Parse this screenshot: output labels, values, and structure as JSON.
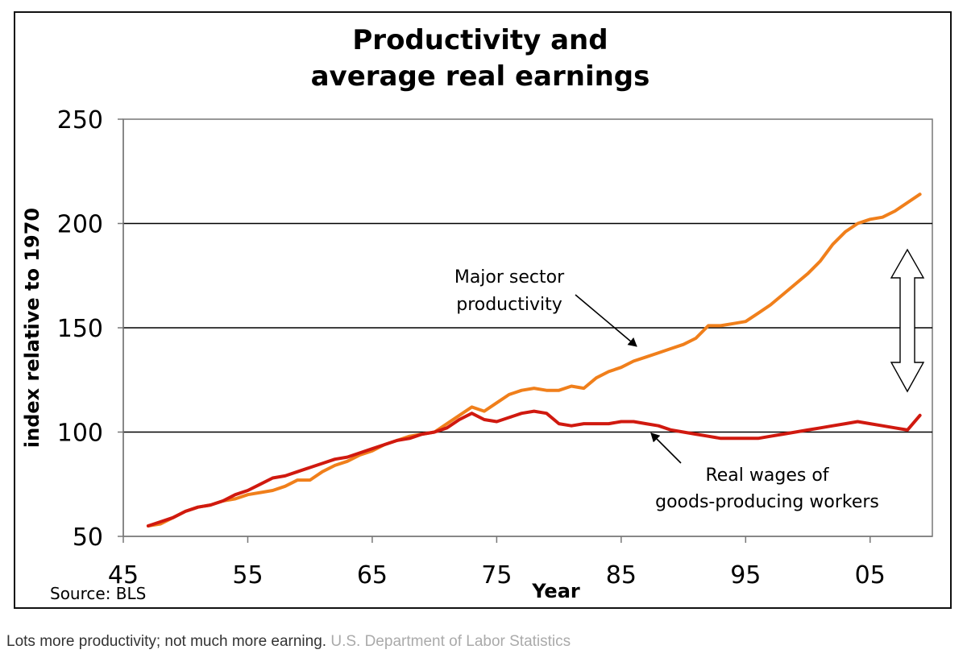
{
  "chart_data": {
    "type": "line",
    "title_lines": [
      "Productivity and",
      "average real earnings"
    ],
    "xlabel": "Year",
    "ylabel": "index relative to 1970",
    "xlim": [
      1945,
      2010
    ],
    "ylim": [
      50,
      250
    ],
    "x_ticks": [
      1945,
      1955,
      1965,
      1975,
      1985,
      1995,
      2005
    ],
    "x_tick_labels": [
      "45",
      "55",
      "65",
      "75",
      "85",
      "95",
      "05"
    ],
    "y_ticks": [
      50,
      100,
      150,
      200,
      250
    ],
    "y_tick_labels": [
      "50",
      "100",
      "150",
      "200",
      "250"
    ],
    "gridlines_y": [
      100,
      150,
      200
    ],
    "source": "Source: BLS",
    "series": [
      {
        "name": "Major sector productivity",
        "color": "#f07f1b",
        "x": [
          1947,
          1948,
          1949,
          1950,
          1951,
          1952,
          1953,
          1954,
          1955,
          1956,
          1957,
          1958,
          1959,
          1960,
          1961,
          1962,
          1963,
          1964,
          1965,
          1966,
          1967,
          1968,
          1969,
          1970,
          1971,
          1972,
          1973,
          1974,
          1975,
          1976,
          1977,
          1978,
          1979,
          1980,
          1981,
          1982,
          1983,
          1984,
          1985,
          1986,
          1987,
          1988,
          1989,
          1990,
          1991,
          1992,
          1993,
          1994,
          1995,
          1996,
          1997,
          1998,
          1999,
          2000,
          2001,
          2002,
          2003,
          2004,
          2005,
          2006,
          2007,
          2008,
          2009
        ],
        "values": [
          55,
          56,
          59,
          62,
          64,
          65,
          67,
          68,
          70,
          71,
          72,
          74,
          77,
          77,
          81,
          84,
          86,
          89,
          91,
          94,
          96,
          98,
          99,
          100,
          104,
          108,
          112,
          110,
          114,
          118,
          120,
          121,
          120,
          120,
          122,
          121,
          126,
          129,
          131,
          134,
          136,
          138,
          140,
          142,
          145,
          151,
          151,
          152,
          153,
          157,
          161,
          166,
          171,
          176,
          182,
          190,
          196,
          200,
          202,
          203,
          206,
          210,
          214
        ]
      },
      {
        "name": "Real wages of goods-producing workers",
        "color": "#d0190f",
        "x": [
          1947,
          1948,
          1949,
          1950,
          1951,
          1952,
          1953,
          1954,
          1955,
          1956,
          1957,
          1958,
          1959,
          1960,
          1961,
          1962,
          1963,
          1964,
          1965,
          1966,
          1967,
          1968,
          1969,
          1970,
          1971,
          1972,
          1973,
          1974,
          1975,
          1976,
          1977,
          1978,
          1979,
          1980,
          1981,
          1982,
          1983,
          1984,
          1985,
          1986,
          1987,
          1988,
          1989,
          1990,
          1991,
          1992,
          1993,
          1994,
          1995,
          1996,
          1997,
          1998,
          1999,
          2000,
          2001,
          2002,
          2003,
          2004,
          2005,
          2006,
          2007,
          2008,
          2009
        ],
        "values": [
          55,
          57,
          59,
          62,
          64,
          65,
          67,
          70,
          72,
          75,
          78,
          79,
          81,
          83,
          85,
          87,
          88,
          90,
          92,
          94,
          96,
          97,
          99,
          100,
          102,
          106,
          109,
          106,
          105,
          107,
          109,
          110,
          109,
          104,
          103,
          104,
          104,
          104,
          105,
          105,
          104,
          103,
          101,
          100,
          99,
          98,
          97,
          97,
          97,
          97,
          98,
          99,
          100,
          101,
          102,
          103,
          104,
          105,
          104,
          103,
          102,
          101,
          108
        ]
      }
    ],
    "annotations": [
      {
        "lines": [
          "Major sector",
          "productivity"
        ]
      },
      {
        "lines": [
          "Real wages of",
          "goods-producing workers"
        ]
      }
    ]
  },
  "caption": {
    "text": "Lots more productivity; not much more earning.",
    "credit": "U.S. Department of Labor Statistics"
  }
}
